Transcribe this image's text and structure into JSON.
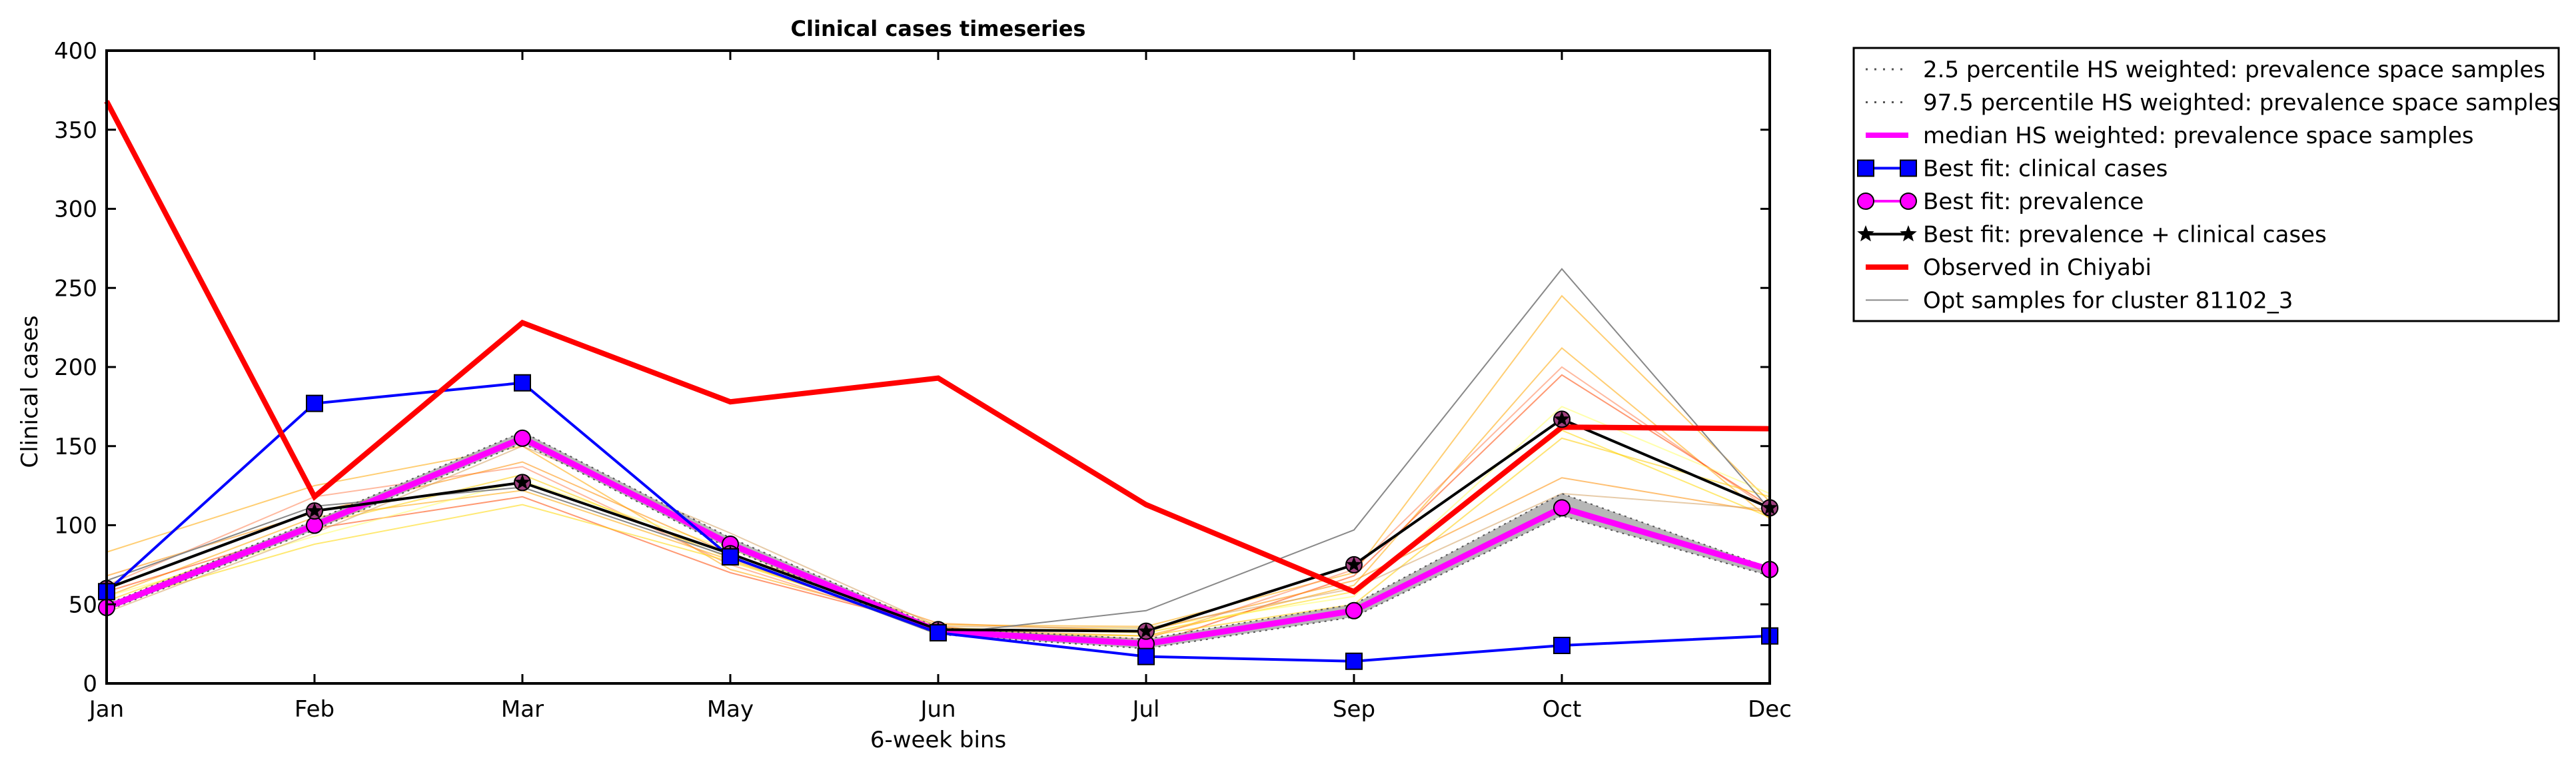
{
  "chart_data": {
    "type": "line",
    "title": "Clinical cases timeseries",
    "xlabel": "6-week bins",
    "ylabel": "Clinical cases",
    "categories": [
      "Jan",
      "Feb",
      "Mar",
      "May",
      "Jun",
      "Jul",
      "Sep",
      "Oct",
      "Dec"
    ],
    "ylim": [
      0,
      400
    ],
    "yticks": [
      0,
      50,
      100,
      150,
      200,
      250,
      300,
      350,
      400
    ],
    "grid": false,
    "legend_position": "outside-top-right",
    "legend": [
      {
        "label": "2.5 percentile HS weighted: prevalence space samples",
        "color": "#555555",
        "style": "dotted"
      },
      {
        "label": "97.5 percentile HS weighted: prevalence space samples",
        "color": "#555555",
        "style": "dotted"
      },
      {
        "label": "median HS weighted: prevalence space samples",
        "color": "#ff00ff",
        "style": "thick"
      },
      {
        "label": "Best fit: clinical cases",
        "color": "#0000ff",
        "marker": "square"
      },
      {
        "label": "Best fit: prevalence",
        "color": "#ff00ff",
        "marker": "circle"
      },
      {
        "label": "Best fit: prevalence + clinical cases",
        "color": "#000000",
        "marker": "star"
      },
      {
        "label": "Observed in Chiyabi",
        "color": "#ff0000",
        "style": "thick"
      },
      {
        "label": "Opt samples for cluster 81102_3",
        "color": "#888888",
        "style": "thin"
      }
    ],
    "series": [
      {
        "name": "2.5 percentile HS weighted: prevalence space samples",
        "color": "#555555",
        "values": [
          46,
          97,
          152,
          85,
          31,
          22,
          42,
          106,
          68
        ]
      },
      {
        "name": "97.5 percentile HS weighted: prevalence space samples",
        "color": "#555555",
        "values": [
          50,
          103,
          159,
          92,
          35,
          28,
          50,
          120,
          73
        ]
      },
      {
        "name": "median HS weighted: prevalence space samples",
        "color": "#ff00ff",
        "values": [
          48,
          100,
          155,
          88,
          33,
          25,
          46,
          111,
          72
        ]
      },
      {
        "name": "Best fit: clinical cases",
        "color": "#0000ff",
        "values": [
          58,
          177,
          190,
          80,
          32,
          17,
          14,
          24,
          30
        ]
      },
      {
        "name": "Best fit: prevalence",
        "color": "#ff00ff",
        "values": [
          48,
          100,
          155,
          88,
          33,
          25,
          46,
          111,
          72
        ]
      },
      {
        "name": "Best fit: prevalence + clinical cases",
        "color": "#000000",
        "values": [
          60,
          109,
          127,
          82,
          34,
          33,
          75,
          167,
          111
        ]
      },
      {
        "name": "Observed in Chiyabi",
        "color": "#ff0000",
        "values": [
          368,
          118,
          228,
          178,
          193,
          113,
          58,
          162,
          161
        ]
      },
      {
        "name": "Opt samples for cluster 81102_3",
        "color": "#888888",
        "values": [
          65,
          112,
          124,
          80,
          31,
          46,
          97,
          262,
          110
        ]
      }
    ],
    "sample_curves": [
      {
        "color": "#ffa500",
        "values": [
          83,
          125,
          150,
          72,
          37,
          36,
          70,
          245,
          115
        ]
      },
      {
        "color": "#ffa500",
        "values": [
          55,
          105,
          122,
          78,
          34,
          30,
          62,
          212,
          104
        ]
      },
      {
        "color": "#ff7f50",
        "values": [
          62,
          118,
          137,
          75,
          34,
          28,
          72,
          200,
          110
        ]
      },
      {
        "color": "#ff4500",
        "values": [
          58,
          98,
          118,
          70,
          36,
          24,
          68,
          195,
          112
        ]
      },
      {
        "color": "#ffd700",
        "values": [
          50,
          88,
          113,
          77,
          35,
          32,
          58,
          160,
          105
        ]
      },
      {
        "color": "#ffff66",
        "values": [
          55,
          93,
          128,
          85,
          33,
          35,
          55,
          175,
          120
        ]
      },
      {
        "color": "#ffcc00",
        "values": [
          52,
          100,
          132,
          79,
          32,
          30,
          50,
          155,
          118
        ]
      },
      {
        "color": "#ff8c00",
        "values": [
          68,
          108,
          140,
          82,
          38,
          33,
          65,
          130,
          108
        ]
      },
      {
        "color": "#d4a060",
        "values": [
          45,
          95,
          150,
          95,
          36,
          35,
          60,
          120,
          110
        ]
      }
    ]
  }
}
